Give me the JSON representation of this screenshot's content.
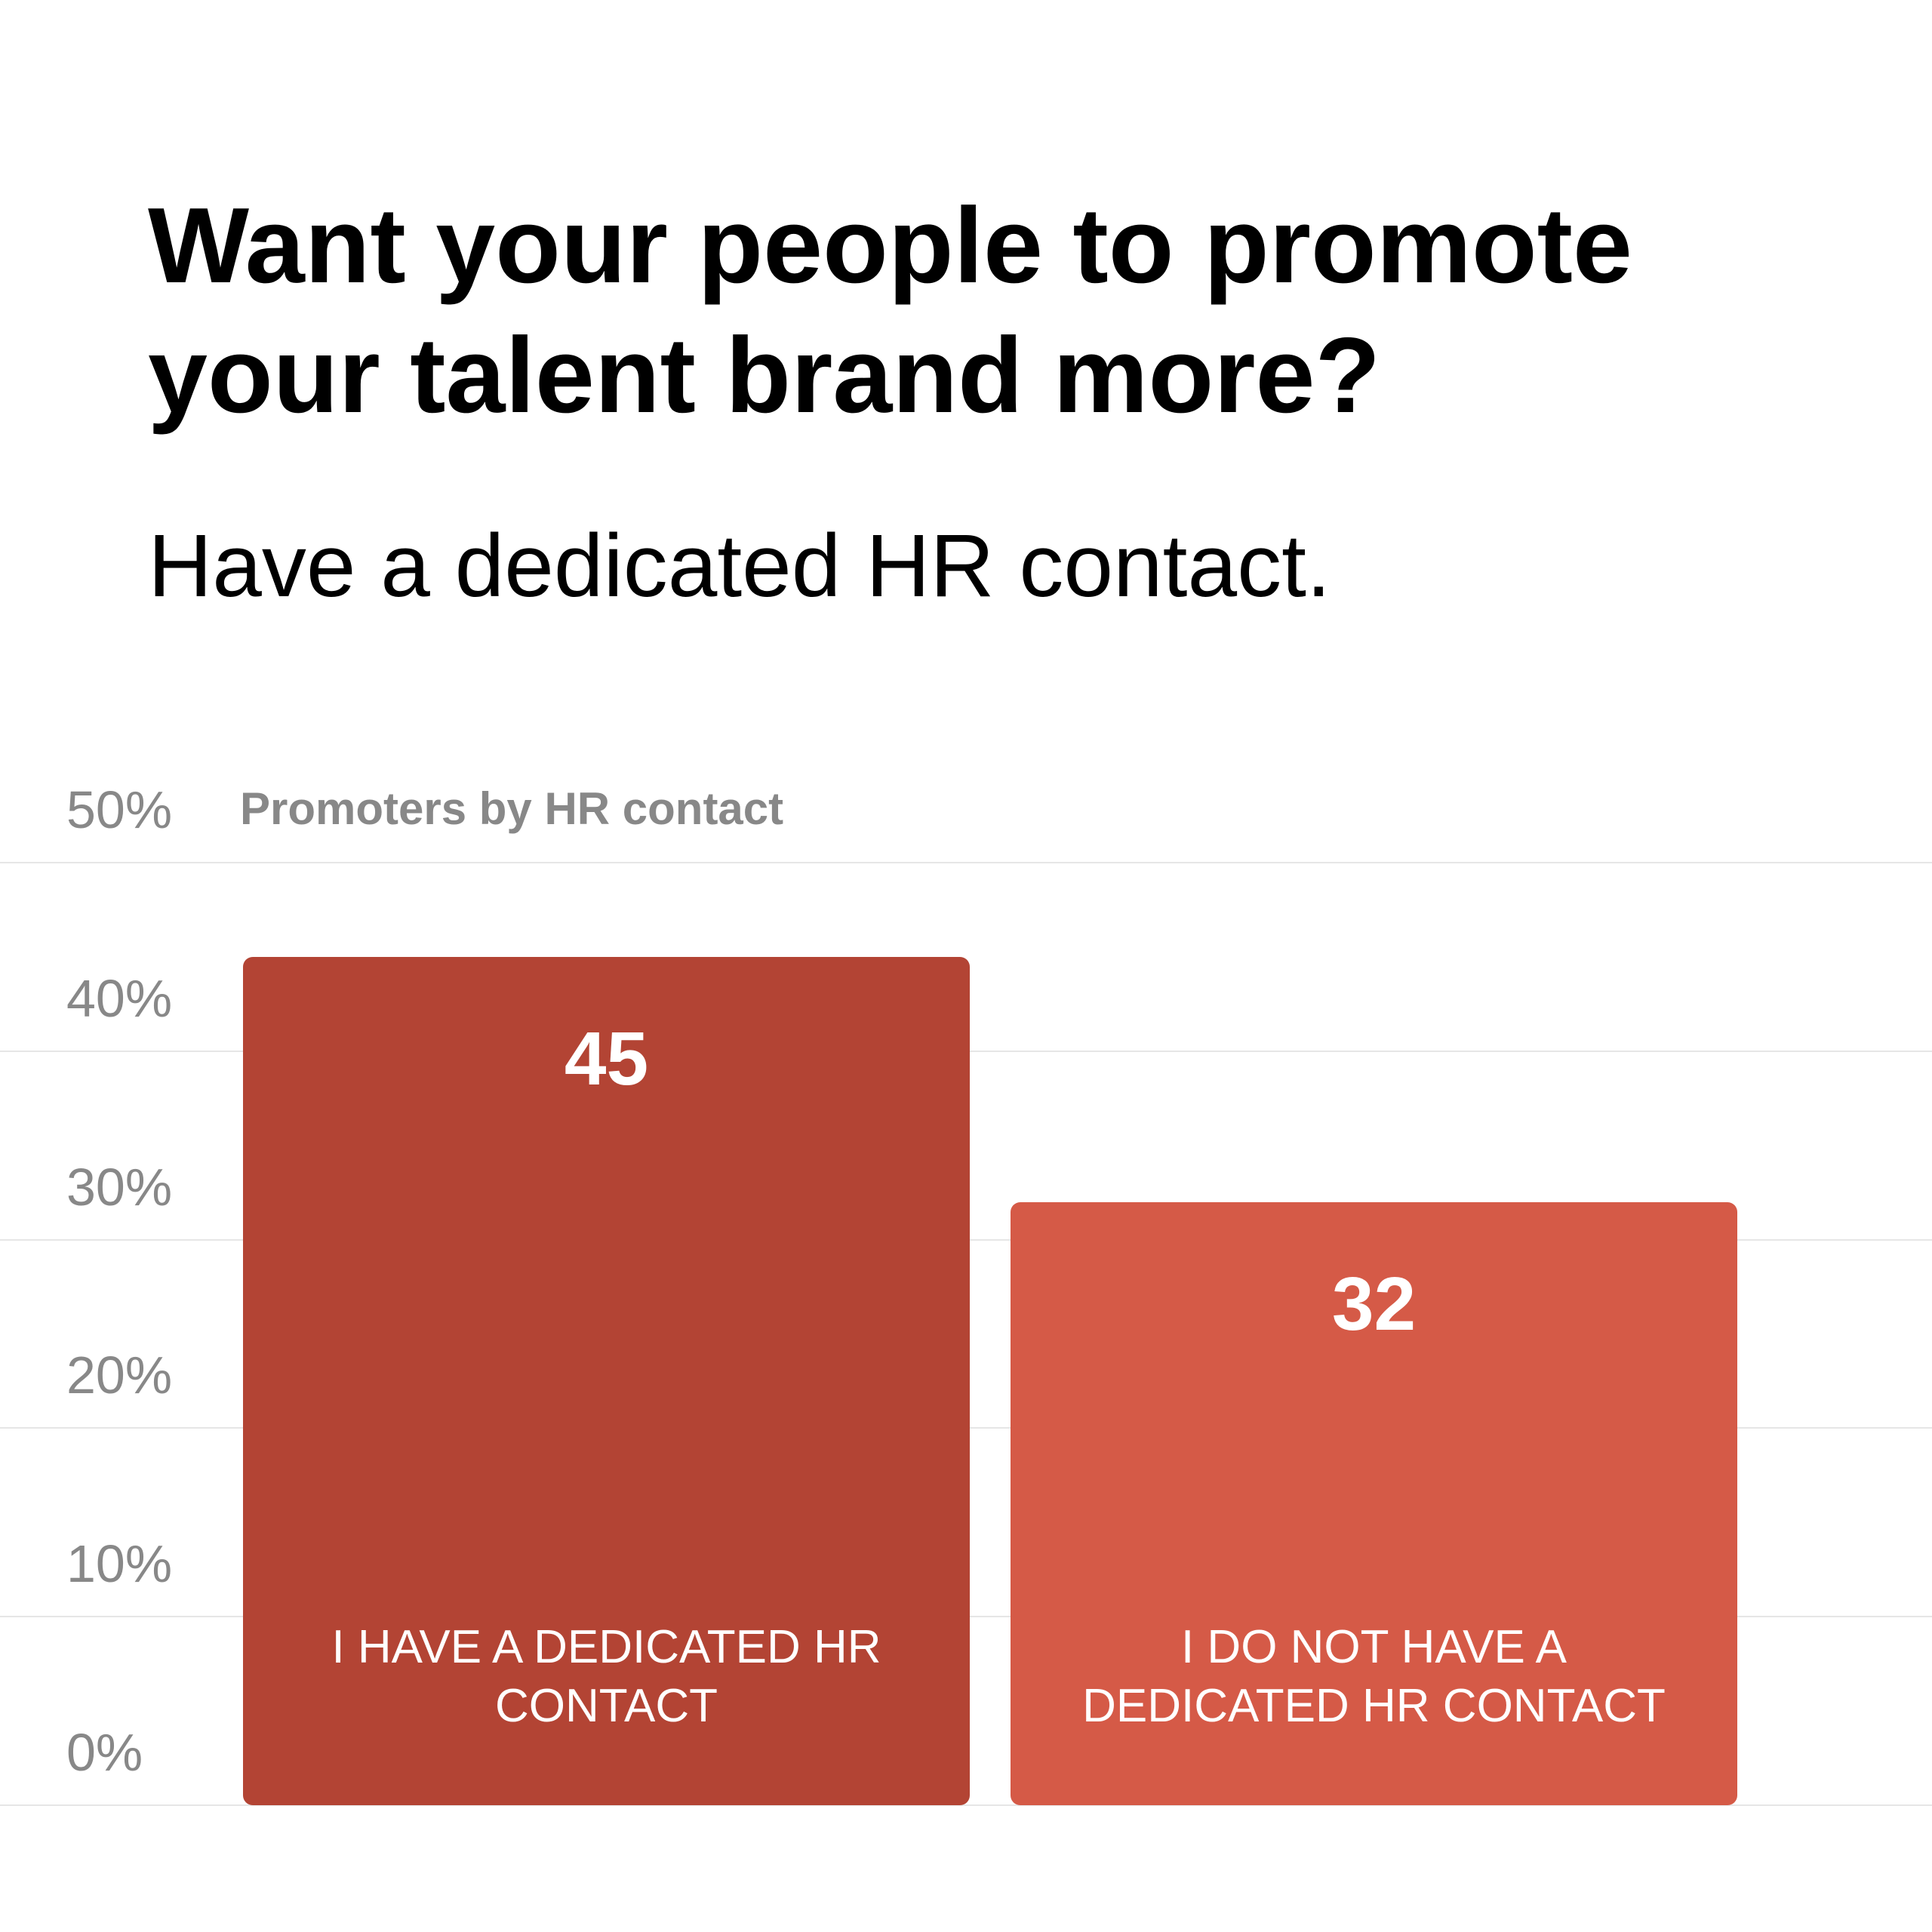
{
  "chart_data": {
    "type": "bar",
    "title": "Want your people to promote your talent brand more?",
    "subtitle": "Have a dedicated HR contact.",
    "ylabel": "Promoters by HR contact",
    "categories": [
      "I HAVE A DEDICATED HR CONTACT",
      "I DO NOT HAVE A DEDICATED HR CONTACT"
    ],
    "values": [
      45,
      32
    ],
    "colors": [
      "#b34434",
      "#d55a47"
    ],
    "ylim": [
      0,
      50
    ],
    "yticks": [
      {
        "value": 0,
        "label": "0%"
      },
      {
        "value": 10,
        "label": "10%"
      },
      {
        "value": 20,
        "label": "20%"
      },
      {
        "value": 30,
        "label": "30%"
      },
      {
        "value": 40,
        "label": "40%"
      },
      {
        "value": 50,
        "label": "50%"
      }
    ],
    "grid": true
  }
}
